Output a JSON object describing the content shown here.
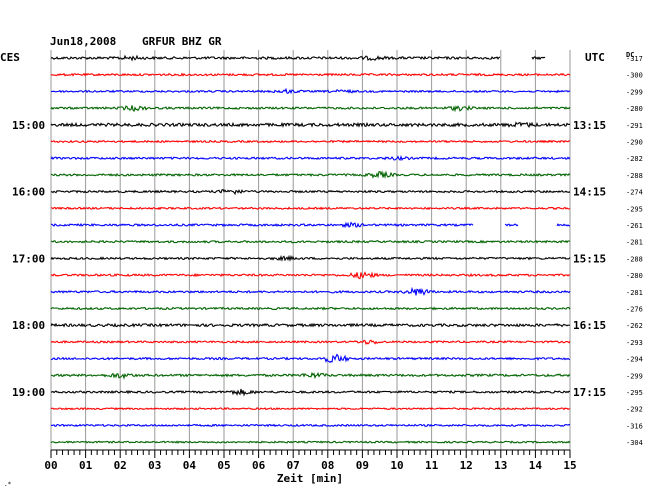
{
  "header": {
    "date": "Jun18,2008",
    "station": "GRFUR BHZ GR",
    "left_zone": "CES",
    "right_zone": "UTC",
    "dc_label": "DC"
  },
  "chart_data": {
    "type": "line",
    "title": "Jun18,2008  GRFUR BHZ GR",
    "xlabel": "Zeit [min]",
    "xlim": [
      0,
      15
    ],
    "x_ticks": [
      "00",
      "01",
      "02",
      "03",
      "04",
      "05",
      "06",
      "07",
      "08",
      "09",
      "10",
      "11",
      "12",
      "13",
      "14",
      "15"
    ],
    "left_time_labels": [
      {
        "row": 4,
        "label": "15:00"
      },
      {
        "row": 8,
        "label": "16:00"
      },
      {
        "row": 12,
        "label": "17:00"
      },
      {
        "row": 16,
        "label": "18:00"
      },
      {
        "row": 20,
        "label": "19:00"
      }
    ],
    "right_time_labels": [
      {
        "row": 4,
        "label": "13:15"
      },
      {
        "row": 8,
        "label": "14:15"
      },
      {
        "row": 12,
        "label": "15:15"
      },
      {
        "row": 16,
        "label": "16:15"
      },
      {
        "row": 20,
        "label": "17:15"
      }
    ],
    "series_colors": [
      "#000000",
      "#ff0000",
      "#0000ff",
      "#006400"
    ],
    "dc_offsets": [
      -317,
      -300,
      -299,
      -280,
      -291,
      -290,
      -282,
      -288,
      -274,
      -295,
      -261,
      -281,
      -288,
      -280,
      -281,
      -276,
      -262,
      -293,
      -294,
      -299,
      -295,
      -292,
      -316,
      -304
    ],
    "traces": [
      {
        "color": "#000000",
        "amp": 1.2,
        "events": [
          {
            "t": 2.3,
            "a": 1.2
          },
          {
            "t": 9.3,
            "a": 1.2
          }
        ],
        "gaps": [
          [
            13.0,
            13.9
          ],
          [
            14.3,
            15.0
          ]
        ]
      },
      {
        "color": "#ff0000",
        "amp": 1.0,
        "events": [],
        "gaps": []
      },
      {
        "color": "#0000ff",
        "amp": 0.9,
        "events": [
          {
            "t": 6.8,
            "a": 1.5
          },
          {
            "t": 8.4,
            "a": 1.0
          }
        ],
        "gaps": []
      },
      {
        "color": "#006400",
        "amp": 1.0,
        "events": [
          {
            "t": 2.4,
            "a": 2.0
          },
          {
            "t": 11.8,
            "a": 1.8
          }
        ],
        "gaps": []
      },
      {
        "color": "#000000",
        "amp": 1.5,
        "events": [
          {
            "t": 13.6,
            "a": 1.4
          }
        ],
        "gaps": []
      },
      {
        "color": "#ff0000",
        "amp": 0.9,
        "events": [],
        "gaps": []
      },
      {
        "color": "#0000ff",
        "amp": 1.0,
        "events": [
          {
            "t": 10.0,
            "a": 1.0
          }
        ],
        "gaps": []
      },
      {
        "color": "#006400",
        "amp": 1.0,
        "events": [
          {
            "t": 9.5,
            "a": 2.5
          }
        ],
        "gaps": []
      },
      {
        "color": "#000000",
        "amp": 1.0,
        "events": [
          {
            "t": 5.2,
            "a": 2.0
          }
        ],
        "gaps": []
      },
      {
        "color": "#ff0000",
        "amp": 0.9,
        "events": [],
        "gaps": []
      },
      {
        "color": "#0000ff",
        "amp": 1.0,
        "events": [
          {
            "t": 8.7,
            "a": 1.5
          }
        ],
        "gaps": [
          [
            12.2,
            13.1
          ],
          [
            13.5,
            14.6
          ]
        ]
      },
      {
        "color": "#006400",
        "amp": 1.0,
        "events": [],
        "gaps": []
      },
      {
        "color": "#000000",
        "amp": 1.0,
        "events": [
          {
            "t": 6.8,
            "a": 1.2
          }
        ],
        "gaps": []
      },
      {
        "color": "#ff0000",
        "amp": 1.0,
        "events": [
          {
            "t": 9.0,
            "a": 3.0
          }
        ],
        "gaps": []
      },
      {
        "color": "#0000ff",
        "amp": 1.0,
        "events": [
          {
            "t": 10.6,
            "a": 3.5
          }
        ],
        "gaps": []
      },
      {
        "color": "#006400",
        "amp": 1.0,
        "events": [],
        "gaps": []
      },
      {
        "color": "#000000",
        "amp": 1.3,
        "events": [],
        "gaps": []
      },
      {
        "color": "#ff0000",
        "amp": 0.9,
        "events": [
          {
            "t": 9.2,
            "a": 1.6
          }
        ],
        "gaps": []
      },
      {
        "color": "#0000ff",
        "amp": 1.0,
        "events": [
          {
            "t": 8.2,
            "a": 4.0
          }
        ],
        "gaps": []
      },
      {
        "color": "#006400",
        "amp": 1.1,
        "events": [
          {
            "t": 2.0,
            "a": 2.0
          },
          {
            "t": 7.6,
            "a": 1.8
          }
        ],
        "gaps": []
      },
      {
        "color": "#000000",
        "amp": 1.0,
        "events": [
          {
            "t": 5.5,
            "a": 2.2
          }
        ],
        "gaps": []
      },
      {
        "color": "#ff0000",
        "amp": 0.8,
        "events": [],
        "gaps": []
      },
      {
        "color": "#0000ff",
        "amp": 0.9,
        "events": [],
        "gaps": []
      },
      {
        "color": "#006400",
        "amp": 0.8,
        "events": [],
        "gaps": []
      }
    ]
  }
}
